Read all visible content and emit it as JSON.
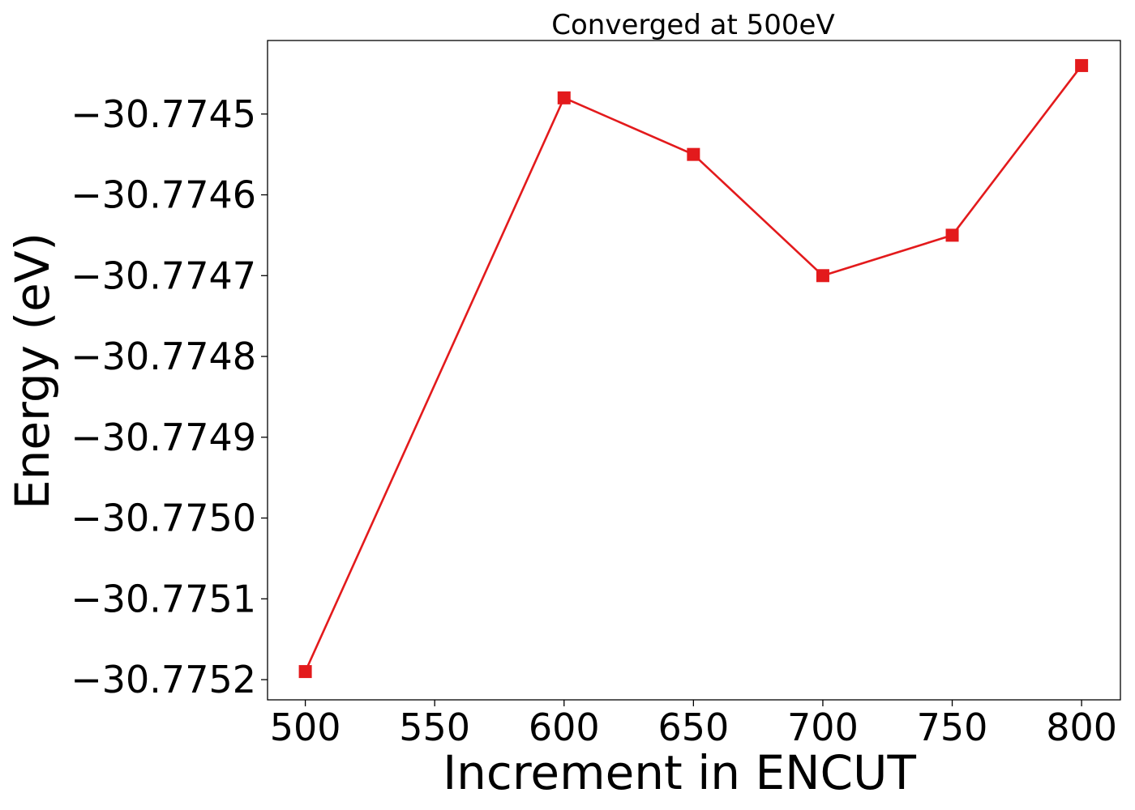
{
  "chart_data": {
    "type": "line",
    "title": "Converged at 500eV",
    "xlabel": "Increment in ENCUT",
    "ylabel": "Energy (eV)",
    "x": [
      500,
      600,
      650,
      700,
      750,
      800
    ],
    "series": [
      {
        "values": [
          -30.77519,
          -30.77448,
          -30.77455,
          -30.7747,
          -30.77465,
          -30.77444
        ],
        "color": "#e31a1c",
        "marker": "square"
      }
    ],
    "xticks": [
      500,
      550,
      600,
      650,
      700,
      750,
      800
    ],
    "xtick_labels": [
      "500",
      "550",
      "600",
      "650",
      "700",
      "750",
      "800"
    ],
    "yticks": [
      -30.7745,
      -30.7746,
      -30.7747,
      -30.7748,
      -30.7749,
      -30.775,
      -30.7751,
      -30.7752
    ],
    "ytick_labels": [
      "−30.7745",
      "−30.7746",
      "−30.7747",
      "−30.7748",
      "−30.7749",
      "−30.7750",
      "−30.7751",
      "−30.7752"
    ],
    "xlim": [
      485.4,
      815.0
    ],
    "ylim": [
      -30.775225,
      -30.774409
    ],
    "grid": false,
    "legend": "none"
  }
}
